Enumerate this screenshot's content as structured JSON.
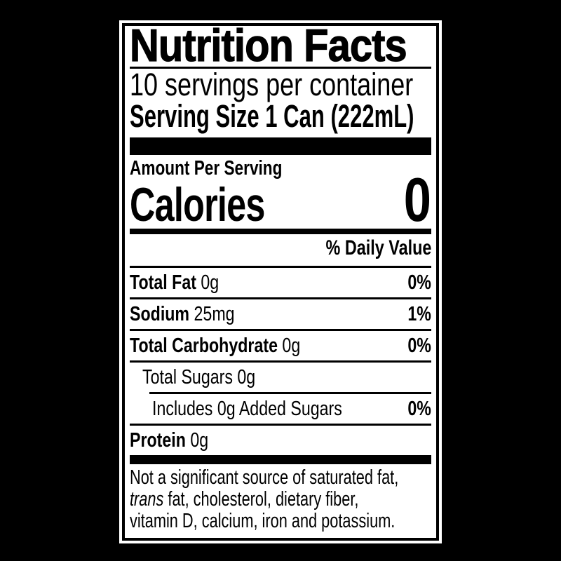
{
  "page": {
    "background_color": "#000000"
  },
  "label": {
    "background_color": "#ffffff",
    "text_color": "#000000",
    "title": "Nutrition Facts",
    "servings_per_container": "10 servings per container",
    "serving_size": "Serving Size 1 Can (222mL)",
    "amount_per_serving": "Amount Per Serving",
    "calories": {
      "label": "Calories",
      "value": "0"
    },
    "daily_value_header": "% Daily Value",
    "nutrients": [
      {
        "name": "Total Fat",
        "amount": "0g",
        "daily_value": "0%",
        "bold": true,
        "indent": 0,
        "rule_after": "full"
      },
      {
        "name": "Sodium",
        "amount": "25mg",
        "daily_value": "1%",
        "bold": true,
        "indent": 0,
        "rule_after": "full"
      },
      {
        "name": "Total Carbohydrate",
        "amount": "0g",
        "daily_value": "0%",
        "bold": true,
        "indent": 0,
        "rule_after": "full"
      },
      {
        "name": "Total Sugars",
        "amount": "0g",
        "daily_value": "",
        "bold": false,
        "indent": 1,
        "rule_after": "indent"
      },
      {
        "name": "Includes 0g Added Sugars",
        "amount": "",
        "daily_value": "0%",
        "bold": false,
        "indent": 2,
        "rule_after": "full"
      },
      {
        "name": "Protein",
        "amount": "0g",
        "daily_value": "",
        "bold": true,
        "indent": 0,
        "rule_after": "none"
      }
    ],
    "footnote_lines": [
      "Not a significant source of saturated fat,",
      "*trans* fat, cholesterol, dietary fiber,",
      "vitamin D, calcium, iron and potassium."
    ]
  }
}
